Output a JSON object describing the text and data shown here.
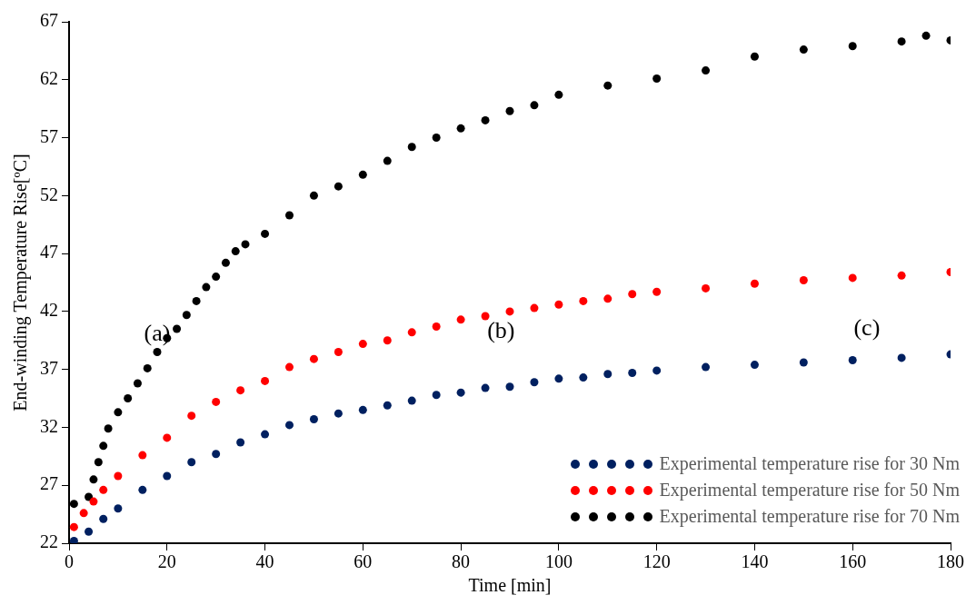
{
  "chart_data": {
    "type": "scatter",
    "xlabel": "Time [min]",
    "ylabel": "End-winding Temperature Rise[ºC]",
    "xlim": [
      0,
      180
    ],
    "xticks": [
      0,
      20,
      40,
      60,
      80,
      100,
      120,
      140,
      160,
      180
    ],
    "ylim": [
      22,
      67
    ],
    "yticks": [
      22,
      27,
      32,
      37,
      42,
      47,
      52,
      57,
      62,
      67
    ],
    "grid": false,
    "legend": "bottom right",
    "marker": "circle",
    "annotations": [
      "(a)",
      "(b)",
      "(c)"
    ],
    "series": [
      {
        "name": "Experimental temperature rise for 30 Nm",
        "color": "#002060",
        "x": [
          1,
          4,
          7,
          10,
          15,
          20,
          25,
          30,
          35,
          40,
          45,
          50,
          55,
          60,
          65,
          70,
          75,
          80,
          85,
          90,
          95,
          100,
          105,
          110,
          115,
          120,
          130,
          140,
          150,
          160,
          170,
          180
        ],
        "values": [
          22.2,
          23.0,
          24.1,
          25.0,
          26.6,
          27.8,
          29.0,
          29.7,
          30.7,
          31.4,
          32.2,
          32.7,
          33.2,
          33.5,
          33.9,
          34.3,
          34.8,
          35.0,
          35.4,
          35.5,
          35.9,
          36.2,
          36.3,
          36.6,
          36.7,
          36.9,
          37.2,
          37.4,
          37.6,
          37.8,
          38.0,
          38.3
        ]
      },
      {
        "name": "Experimental temperature rise for 50 Nm",
        "color": "#ff0000",
        "x": [
          1,
          3,
          5,
          7,
          10,
          15,
          20,
          25,
          30,
          35,
          40,
          45,
          50,
          55,
          60,
          65,
          70,
          75,
          80,
          85,
          90,
          95,
          100,
          105,
          110,
          115,
          120,
          130,
          140,
          150,
          160,
          170,
          180
        ],
        "values": [
          23.4,
          24.6,
          25.6,
          26.6,
          27.8,
          29.6,
          31.1,
          33.0,
          34.2,
          35.2,
          36.0,
          37.2,
          37.9,
          38.5,
          39.2,
          39.5,
          40.2,
          40.7,
          41.3,
          41.6,
          42.0,
          42.3,
          42.6,
          42.9,
          43.1,
          43.5,
          43.7,
          44.0,
          44.4,
          44.7,
          44.9,
          45.1,
          45.4
        ]
      },
      {
        "name": "Experimental temperature rise for 70 Nm",
        "color": "#000000",
        "x": [
          1,
          4,
          5,
          6,
          7,
          8,
          10,
          12,
          14,
          16,
          18,
          20,
          22,
          24,
          26,
          28,
          30,
          32,
          34,
          36,
          40,
          45,
          50,
          55,
          60,
          65,
          70,
          75,
          80,
          85,
          90,
          95,
          100,
          110,
          120,
          130,
          140,
          150,
          160,
          170,
          175,
          180
        ],
        "values": [
          25.4,
          26.0,
          27.5,
          29.0,
          30.4,
          31.9,
          33.3,
          34.5,
          35.8,
          37.1,
          38.5,
          39.7,
          40.5,
          41.7,
          42.9,
          44.1,
          45.0,
          46.2,
          47.2,
          47.8,
          48.7,
          50.3,
          52.0,
          52.8,
          53.8,
          55.0,
          56.2,
          57.0,
          57.8,
          58.5,
          59.3,
          59.8,
          60.7,
          61.5,
          62.1,
          62.8,
          64.0,
          64.6,
          64.9,
          65.3,
          65.8,
          65.4
        ]
      }
    ]
  }
}
